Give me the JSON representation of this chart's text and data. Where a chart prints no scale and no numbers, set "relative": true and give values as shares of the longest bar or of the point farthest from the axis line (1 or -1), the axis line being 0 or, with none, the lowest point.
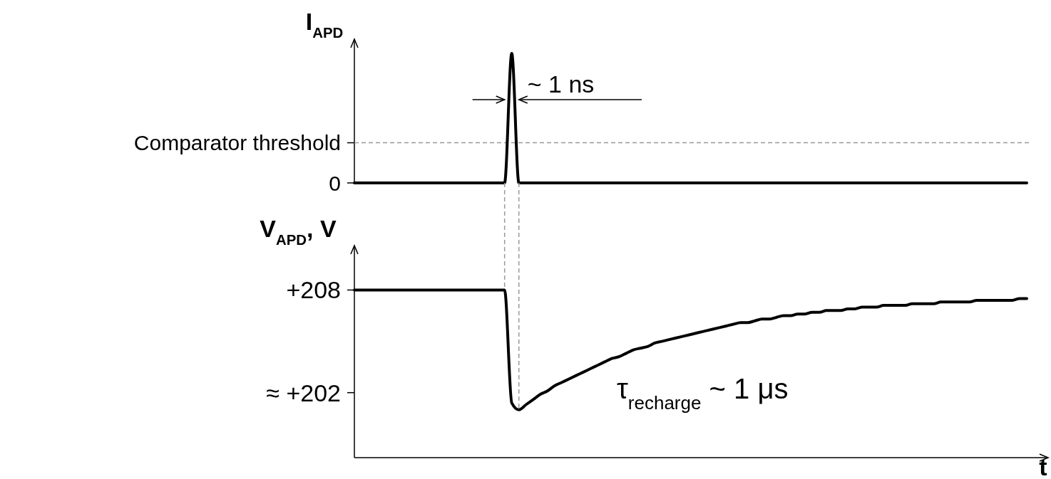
{
  "chart_data": [
    {
      "type": "line",
      "relative": true,
      "ylabel": "I$_{APD}$",
      "categories": [
        null,
        null,
        null,
        null,
        null,
        null,
        null,
        null,
        null,
        null,
        null,
        null,
        null,
        null,
        null,
        null,
        null,
        null,
        null,
        null,
        null,
        null,
        null,
        null,
        null,
        null,
        null,
        null,
        null,
        null,
        null,
        null,
        null,
        null,
        null,
        null,
        null,
        null,
        null,
        null,
        null,
        null,
        null,
        null,
        null,
        null,
        null,
        null,
        null,
        null,
        null,
        null,
        null,
        null,
        null,
        null,
        null,
        null,
        null,
        null,
        null,
        null,
        null,
        null,
        null,
        null,
        null,
        null,
        null,
        null,
        null,
        null,
        null,
        null,
        null,
        null,
        null,
        null,
        null,
        null,
        null,
        null,
        null,
        null,
        null,
        null,
        null,
        null,
        null,
        null,
        null,
        null,
        null,
        null,
        null
      ],
      "series": [
        {
          "color": "#000000",
          "values": [
            0,
            0,
            0,
            0,
            0,
            0,
            0,
            0,
            0,
            0,
            0,
            0,
            0,
            0,
            0,
            0,
            0,
            0,
            0,
            0,
            0,
            0,
            1,
            0,
            0,
            0,
            0,
            0,
            0,
            0,
            0,
            0,
            0,
            0,
            0,
            0,
            0,
            0,
            0,
            0,
            0,
            0,
            0,
            0,
            0,
            0,
            0,
            0,
            0,
            0,
            0,
            0,
            0,
            0,
            0,
            0,
            0,
            0,
            0,
            0,
            0,
            0,
            0,
            0,
            0,
            0,
            0,
            0,
            0,
            0,
            0,
            0,
            0,
            0,
            0,
            0,
            0,
            0,
            0,
            0,
            0,
            0,
            0,
            0,
            0,
            0,
            0,
            0,
            0,
            0,
            0,
            0,
            0,
            0,
            0
          ]
        }
      ],
      "ref_lines": [
        {
          "axis": "y",
          "value": 0.31,
          "label": "Comparator threshold",
          "color": "#999999",
          "line_style": "dashed"
        }
      ],
      "annotations": [
        "~ 1 ns",
        "0"
      ]
    },
    {
      "type": "line",
      "ylabel": "V$_{APD}$, V",
      "xlabel": "t",
      "ylim": [
        198.2,
        210.6
      ],
      "yticks": [
        {
          "value": 202,
          "label": "≈ +202"
        },
        {
          "value": 208,
          "label": "+208"
        }
      ],
      "categories": [
        null,
        null,
        null,
        null,
        null,
        null,
        null,
        null,
        null,
        null,
        null,
        null,
        null,
        null,
        null,
        null,
        null,
        null,
        null,
        null,
        null,
        null,
        null,
        null,
        null,
        null,
        null,
        null,
        null,
        null,
        null,
        null,
        null,
        null,
        null,
        null,
        null,
        null,
        null,
        null,
        null,
        null,
        null,
        null,
        null,
        null,
        null,
        null,
        null,
        null,
        null,
        null,
        null,
        null,
        null,
        null,
        null,
        null,
        null,
        null,
        null,
        null,
        null,
        null,
        null,
        null,
        null,
        null,
        null,
        null,
        null,
        null,
        null,
        null,
        null,
        null,
        null,
        null,
        null,
        null,
        null,
        null,
        null,
        null,
        null,
        null,
        null,
        null,
        null,
        null,
        null,
        null,
        null,
        null,
        null
      ],
      "series": [
        {
          "color": "#000000",
          "values": [
            208,
            208,
            208,
            208,
            208,
            208,
            208,
            208,
            208,
            208,
            208,
            208,
            208,
            208,
            208,
            208,
            208,
            208,
            208,
            208,
            208,
            208,
            201.4,
            201.0,
            201.3,
            201.6,
            201.9,
            202.1,
            202.4,
            202.6,
            202.8,
            203.0,
            203.2,
            203.4,
            203.6,
            203.8,
            204.0,
            204.1,
            204.3,
            204.5,
            204.6,
            204.7,
            204.9,
            205.0,
            205.1,
            205.2,
            205.3,
            205.4,
            205.5,
            205.6,
            205.7,
            205.8,
            205.9,
            206.0,
            206.1,
            206.1,
            206.2,
            206.3,
            206.3,
            206.4,
            206.5,
            206.5,
            206.6,
            206.6,
            206.7,
            206.7,
            206.8,
            206.8,
            206.8,
            206.9,
            206.9,
            207.0,
            207.0,
            207.0,
            207.1,
            207.1,
            207.1,
            207.1,
            207.2,
            207.2,
            207.2,
            207.2,
            207.3,
            207.3,
            207.3,
            207.3,
            207.3,
            207.4,
            207.4,
            207.4,
            207.4,
            207.4,
            207.4,
            207.5,
            207.5
          ]
        }
      ],
      "annotations": [
        "τ$_{recharge}$ ~ 1 μs"
      ]
    }
  ]
}
